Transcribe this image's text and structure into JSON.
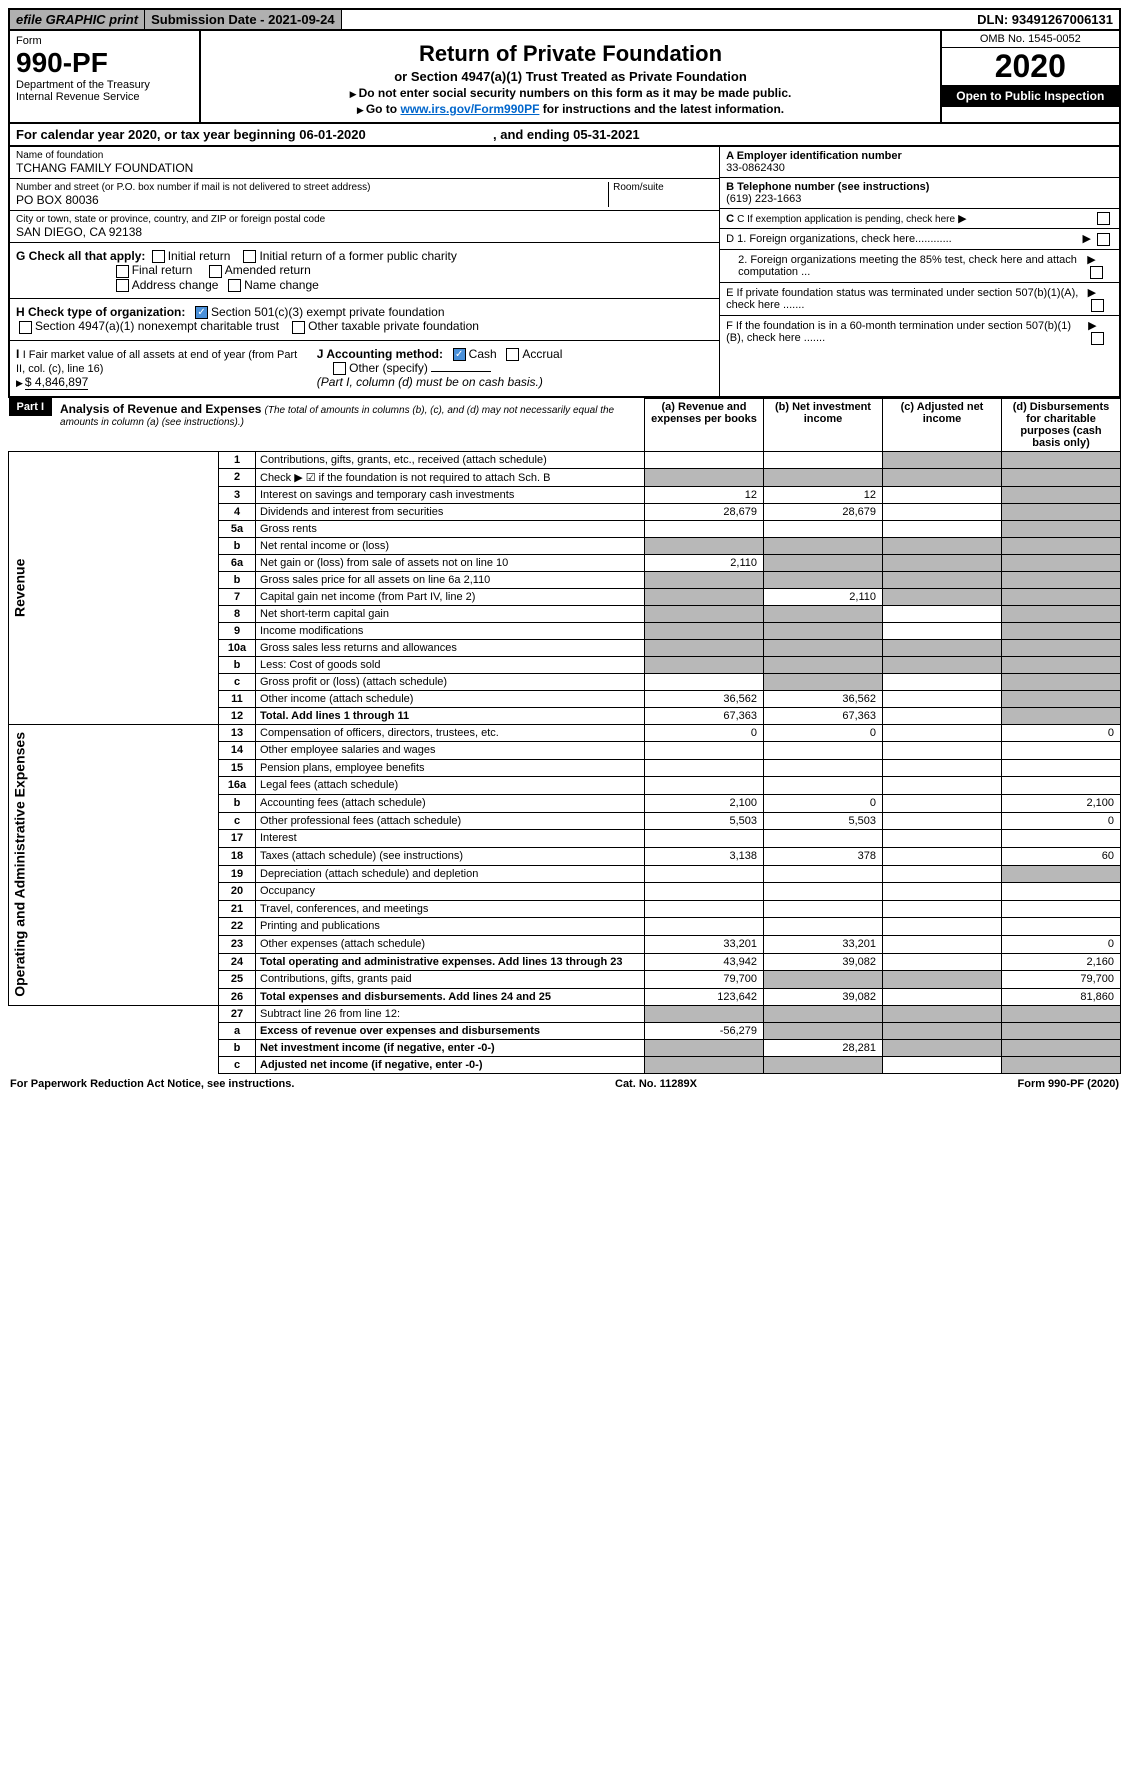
{
  "header": {
    "graphic_print": "efile GRAPHIC print",
    "submission_date": "Submission Date - 2021-09-24",
    "dln": "DLN: 93491267006131",
    "form_label": "Form",
    "form_number": "990-PF",
    "dept": "Department of the Treasury",
    "irs": "Internal Revenue Service",
    "title": "Return of Private Foundation",
    "subtitle": "or Section 4947(a)(1) Trust Treated as Private Foundation",
    "note1": "Do not enter social security numbers on this form as it may be made public.",
    "note2_prefix": "Go to ",
    "note2_link": "www.irs.gov/Form990PF",
    "note2_suffix": " for instructions and the latest information.",
    "omb": "OMB No. 1545-0052",
    "year": "2020",
    "open": "Open to Public Inspection"
  },
  "cal_year": {
    "prefix": "For calendar year 2020, or tax year beginning ",
    "begin": "06-01-2020",
    "mid": ", and ending ",
    "end": "05-31-2021"
  },
  "foundation": {
    "name_label": "Name of foundation",
    "name": "TCHANG FAMILY FOUNDATION",
    "addr_label": "Number and street (or P.O. box number if mail is not delivered to street address)",
    "addr": "PO BOX 80036",
    "room_label": "Room/suite",
    "city_label": "City or town, state or province, country, and ZIP or foreign postal code",
    "city": "SAN DIEGO, CA  92138",
    "ein_label": "A Employer identification number",
    "ein": "33-0862430",
    "phone_label": "B Telephone number (see instructions)",
    "phone": "(619) 223-1663",
    "c_label": "C If exemption application is pending, check here"
  },
  "checks": {
    "g_label": "G Check all that apply:",
    "g_opts": [
      "Initial return",
      "Final return",
      "Address change",
      "Initial return of a former public charity",
      "Amended return",
      "Name change"
    ],
    "h_label": "H Check type of organization:",
    "h1": "Section 501(c)(3) exempt private foundation",
    "h2": "Section 4947(a)(1) nonexempt charitable trust",
    "h3": "Other taxable private foundation",
    "i_label": "I Fair market value of all assets at end of year (from Part II, col. (c), line 16)",
    "i_val": "$  4,846,897",
    "j_label": "J Accounting method:",
    "j_cash": "Cash",
    "j_accrual": "Accrual",
    "j_other": "Other (specify)",
    "j_note": "(Part I, column (d) must be on cash basis.)",
    "d1": "D 1. Foreign organizations, check here............",
    "d2": "2. Foreign organizations meeting the 85% test, check here and attach computation ...",
    "e": "E If private foundation status was terminated under section 507(b)(1)(A), check here .......",
    "f": "F If the foundation is in a 60-month termination under section 507(b)(1)(B), check here ......."
  },
  "part1": {
    "label": "Part I",
    "title": "Analysis of Revenue and Expenses",
    "title_note": "(The total of amounts in columns (b), (c), and (d) may not necessarily equal the amounts in column (a) (see instructions).)",
    "col_a": "(a)    Revenue and expenses per books",
    "col_b": "(b)   Net investment income",
    "col_c": "(c)   Adjusted net income",
    "col_d": "(d)   Disbursements for charitable purposes (cash basis only)"
  },
  "revenue_label": "Revenue",
  "expenses_label": "Operating and Administrative Expenses",
  "rows": [
    {
      "n": "1",
      "d": "Contributions, gifts, grants, etc., received (attach schedule)",
      "a": "",
      "b": "",
      "c": "gray",
      "dd": "gray"
    },
    {
      "n": "2",
      "d": "Check ▶ ☑ if the foundation is not required to attach Sch. B",
      "a": "gray",
      "b": "gray",
      "c": "gray",
      "dd": "gray"
    },
    {
      "n": "3",
      "d": "Interest on savings and temporary cash investments",
      "a": "12",
      "b": "12",
      "c": "",
      "dd": "gray"
    },
    {
      "n": "4",
      "d": "Dividends and interest from securities",
      "a": "28,679",
      "b": "28,679",
      "c": "",
      "dd": "gray"
    },
    {
      "n": "5a",
      "d": "Gross rents",
      "a": "",
      "b": "",
      "c": "",
      "dd": "gray"
    },
    {
      "n": "b",
      "d": "Net rental income or (loss)",
      "a": "gray",
      "b": "gray",
      "c": "gray",
      "dd": "gray"
    },
    {
      "n": "6a",
      "d": "Net gain or (loss) from sale of assets not on line 10",
      "a": "2,110",
      "b": "gray",
      "c": "gray",
      "dd": "gray"
    },
    {
      "n": "b",
      "d": "Gross sales price for all assets on line 6a            2,110",
      "a": "gray",
      "b": "gray",
      "c": "gray",
      "dd": "gray"
    },
    {
      "n": "7",
      "d": "Capital gain net income (from Part IV, line 2)",
      "a": "gray",
      "b": "2,110",
      "c": "gray",
      "dd": "gray"
    },
    {
      "n": "8",
      "d": "Net short-term capital gain",
      "a": "gray",
      "b": "gray",
      "c": "",
      "dd": "gray"
    },
    {
      "n": "9",
      "d": "Income modifications",
      "a": "gray",
      "b": "gray",
      "c": "",
      "dd": "gray"
    },
    {
      "n": "10a",
      "d": "Gross sales less returns and allowances",
      "a": "gray",
      "b": "gray",
      "c": "gray",
      "dd": "gray"
    },
    {
      "n": "b",
      "d": "Less: Cost of goods sold",
      "a": "gray",
      "b": "gray",
      "c": "gray",
      "dd": "gray"
    },
    {
      "n": "c",
      "d": "Gross profit or (loss) (attach schedule)",
      "a": "",
      "b": "gray",
      "c": "",
      "dd": "gray"
    },
    {
      "n": "11",
      "d": "Other income (attach schedule)",
      "a": "36,562",
      "b": "36,562",
      "c": "",
      "dd": "gray"
    },
    {
      "n": "12",
      "d": "Total. Add lines 1 through 11",
      "a": "67,363",
      "b": "67,363",
      "c": "",
      "dd": "gray",
      "bold": true
    }
  ],
  "exp_rows": [
    {
      "n": "13",
      "d": "Compensation of officers, directors, trustees, etc.",
      "a": "0",
      "b": "0",
      "c": "",
      "dd": "0"
    },
    {
      "n": "14",
      "d": "Other employee salaries and wages",
      "a": "",
      "b": "",
      "c": "",
      "dd": ""
    },
    {
      "n": "15",
      "d": "Pension plans, employee benefits",
      "a": "",
      "b": "",
      "c": "",
      "dd": ""
    },
    {
      "n": "16a",
      "d": "Legal fees (attach schedule)",
      "a": "",
      "b": "",
      "c": "",
      "dd": ""
    },
    {
      "n": "b",
      "d": "Accounting fees (attach schedule)",
      "a": "2,100",
      "b": "0",
      "c": "",
      "dd": "2,100"
    },
    {
      "n": "c",
      "d": "Other professional fees (attach schedule)",
      "a": "5,503",
      "b": "5,503",
      "c": "",
      "dd": "0"
    },
    {
      "n": "17",
      "d": "Interest",
      "a": "",
      "b": "",
      "c": "",
      "dd": ""
    },
    {
      "n": "18",
      "d": "Taxes (attach schedule) (see instructions)",
      "a": "3,138",
      "b": "378",
      "c": "",
      "dd": "60"
    },
    {
      "n": "19",
      "d": "Depreciation (attach schedule) and depletion",
      "a": "",
      "b": "",
      "c": "",
      "dd": "gray"
    },
    {
      "n": "20",
      "d": "Occupancy",
      "a": "",
      "b": "",
      "c": "",
      "dd": ""
    },
    {
      "n": "21",
      "d": "Travel, conferences, and meetings",
      "a": "",
      "b": "",
      "c": "",
      "dd": ""
    },
    {
      "n": "22",
      "d": "Printing and publications",
      "a": "",
      "b": "",
      "c": "",
      "dd": ""
    },
    {
      "n": "23",
      "d": "Other expenses (attach schedule)",
      "a": "33,201",
      "b": "33,201",
      "c": "",
      "dd": "0"
    },
    {
      "n": "24",
      "d": "Total operating and administrative expenses. Add lines 13 through 23",
      "a": "43,942",
      "b": "39,082",
      "c": "",
      "dd": "2,160",
      "bold": true
    },
    {
      "n": "25",
      "d": "Contributions, gifts, grants paid",
      "a": "79,700",
      "b": "gray",
      "c": "gray",
      "dd": "79,700"
    },
    {
      "n": "26",
      "d": "Total expenses and disbursements. Add lines 24 and 25",
      "a": "123,642",
      "b": "39,082",
      "c": "",
      "dd": "81,860",
      "bold": true
    }
  ],
  "line27": {
    "n": "27",
    "d": "Subtract line 26 from line 12:",
    "a_label": "Excess of revenue over expenses and disbursements",
    "a_val": "-56,279",
    "b_label": "Net investment income (if negative, enter -0-)",
    "b_val": "28,281",
    "c_label": "Adjusted net income (if negative, enter -0-)"
  },
  "footer": {
    "left": "For Paperwork Reduction Act Notice, see instructions.",
    "mid": "Cat. No. 11289X",
    "right": "Form 990-PF (2020)"
  }
}
